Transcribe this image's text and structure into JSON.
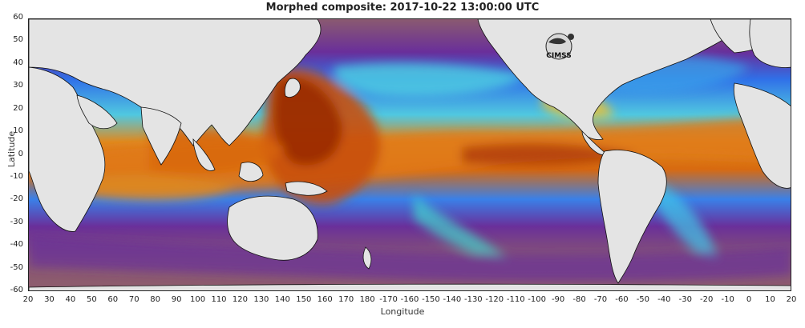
{
  "title": "Morphed composite: 2017-10-22 13:00:00 UTC",
  "axes": {
    "xlabel": "Longitude",
    "ylabel": "Latitude",
    "x_ticks": [
      "20",
      "30",
      "40",
      "50",
      "60",
      "70",
      "80",
      "90",
      "100",
      "110",
      "120",
      "130",
      "140",
      "150",
      "160",
      "170",
      "180",
      "-170",
      "-160",
      "-150",
      "-140",
      "-130",
      "-120",
      "-110",
      "-100",
      "-90",
      "-80",
      "-70",
      "-60",
      "-50",
      "-40",
      "-30",
      "-20",
      "-10",
      "0",
      "10",
      "20"
    ],
    "y_ticks": [
      "60",
      "50",
      "40",
      "30",
      "20",
      "10",
      "0",
      "-10",
      "-20",
      "-30",
      "-40",
      "-50",
      "-60"
    ],
    "lon_range": [
      20,
      380
    ],
    "lat_range": [
      -60,
      60
    ]
  },
  "logo": {
    "text": "CIMSS"
  },
  "colors": {
    "land": "#e4e4e4",
    "purple": "#7a2d9a",
    "blue": "#2060e6",
    "cyan": "#3fe0e6",
    "yellow": "#f0e040",
    "orange": "#e06a10",
    "red": "#a62a06",
    "brown": "#8e5c6e"
  }
}
